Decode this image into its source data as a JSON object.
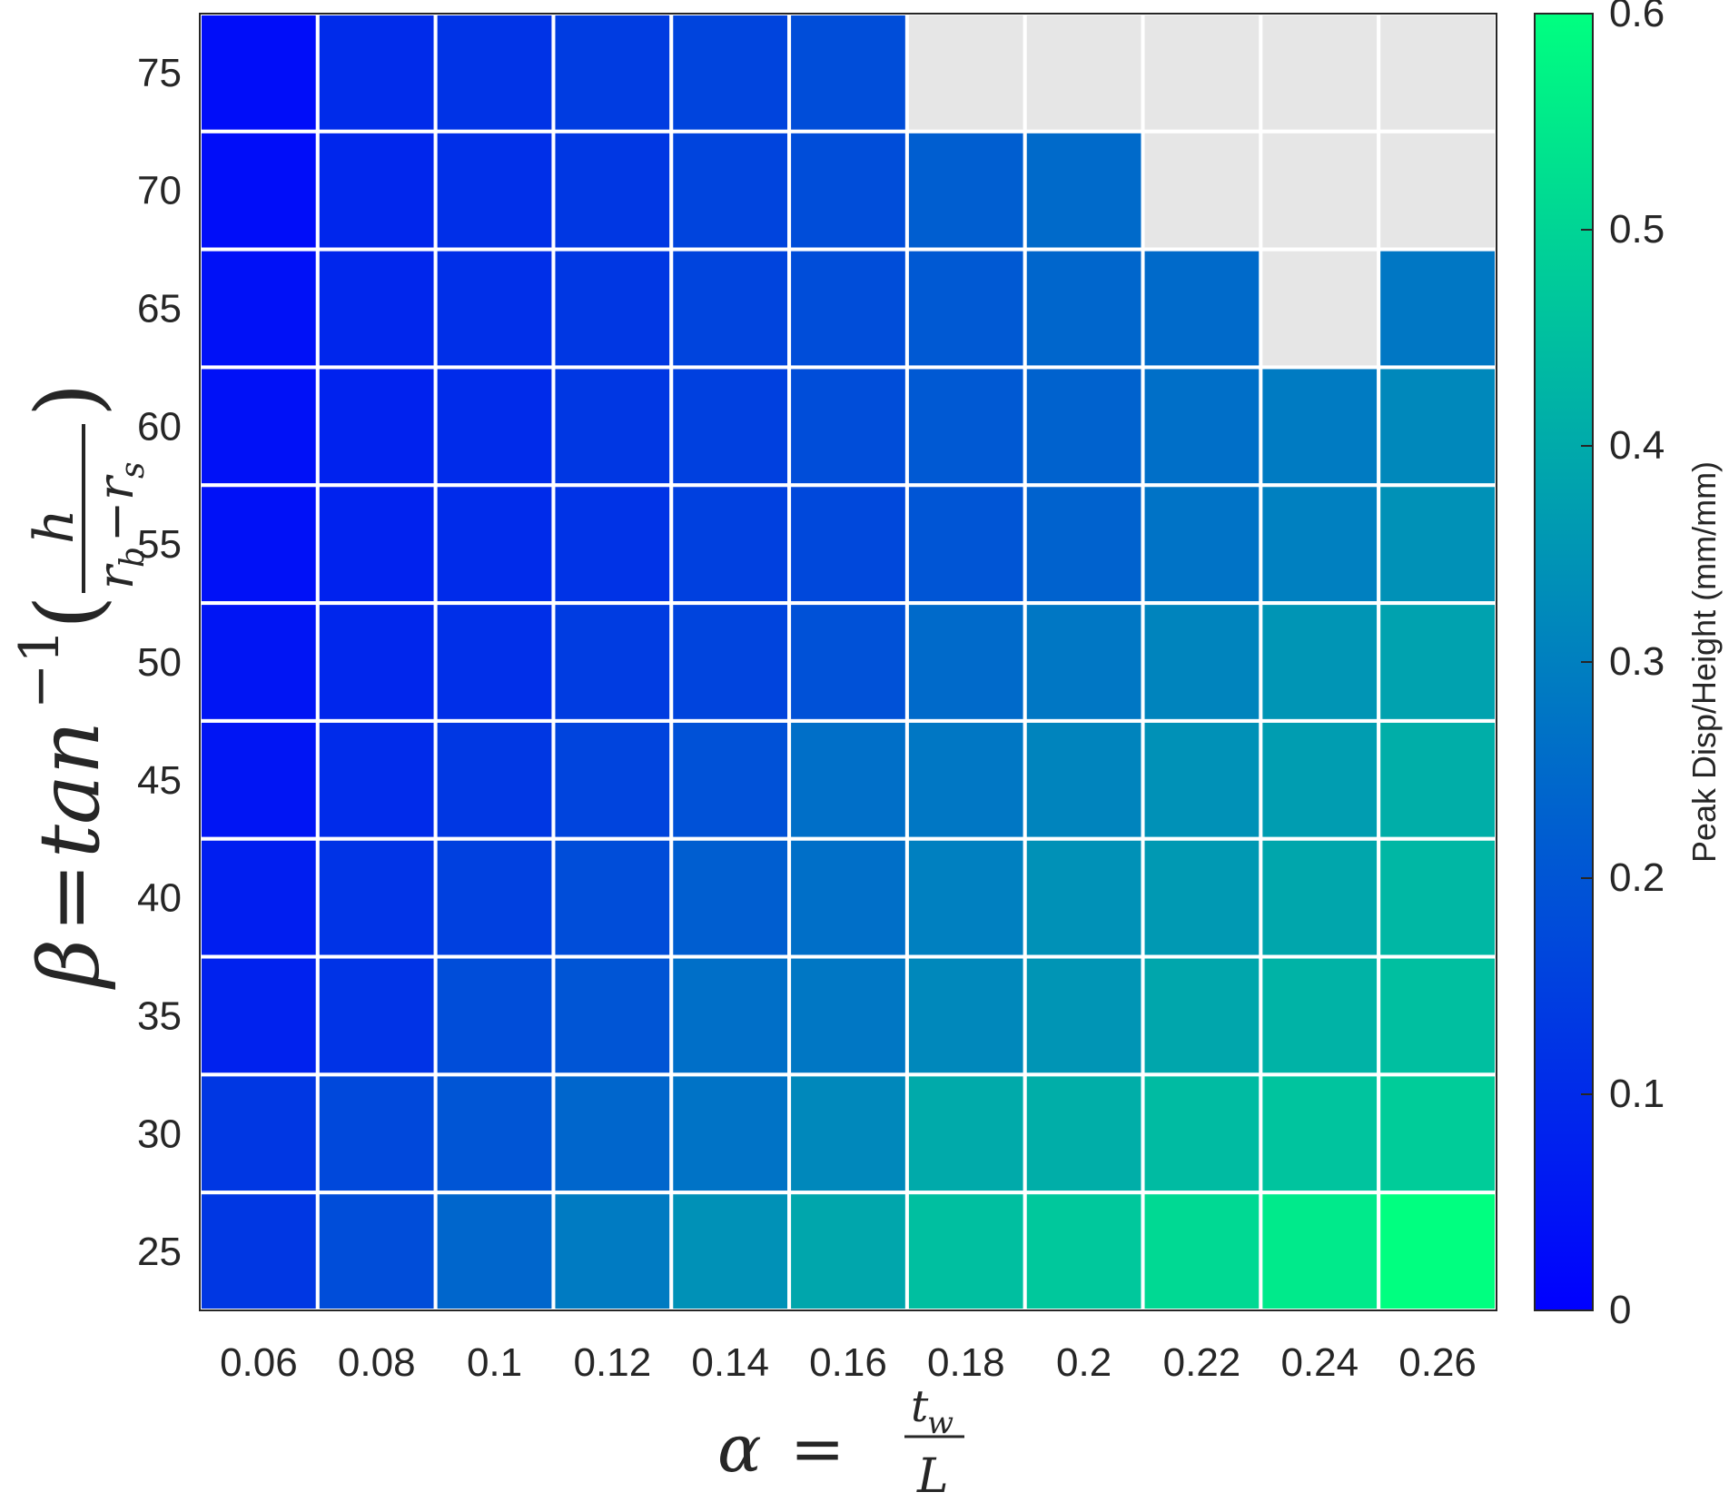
{
  "colors": {
    "missing": "#e6e6e6",
    "grid_line": "#ffffff",
    "axis": "#262626",
    "colormap_low": "#0000ff",
    "colormap_high": "#00ff80"
  },
  "chart_data": {
    "type": "heatmap",
    "x_categories": [
      "0.06",
      "0.08",
      "0.1",
      "0.12",
      "0.14",
      "0.16",
      "0.18",
      "0.2",
      "0.22",
      "0.24",
      "0.26"
    ],
    "y_categories": [
      "75",
      "70",
      "65",
      "60",
      "55",
      "50",
      "45",
      "40",
      "35",
      "30",
      "25"
    ],
    "values": [
      [
        0.03,
        0.1,
        0.12,
        0.14,
        0.16,
        0.18,
        null,
        null,
        null,
        null,
        null
      ],
      [
        0.03,
        0.09,
        0.11,
        0.13,
        0.16,
        0.18,
        0.22,
        0.25,
        null,
        null,
        null
      ],
      [
        0.04,
        0.09,
        0.11,
        0.13,
        0.16,
        0.18,
        0.21,
        0.24,
        0.25,
        null,
        0.28
      ],
      [
        0.04,
        0.08,
        0.1,
        0.13,
        0.15,
        0.18,
        0.21,
        0.23,
        0.26,
        0.29,
        0.32
      ],
      [
        0.04,
        0.08,
        0.1,
        0.12,
        0.15,
        0.17,
        0.2,
        0.23,
        0.27,
        0.3,
        0.34
      ],
      [
        0.05,
        0.09,
        0.11,
        0.14,
        0.16,
        0.19,
        0.25,
        0.28,
        0.31,
        0.35,
        0.38
      ],
      [
        0.05,
        0.1,
        0.13,
        0.16,
        0.19,
        0.26,
        0.28,
        0.31,
        0.34,
        0.37,
        0.41
      ],
      [
        0.07,
        0.12,
        0.15,
        0.18,
        0.22,
        0.26,
        0.3,
        0.34,
        0.36,
        0.39,
        0.43
      ],
      [
        0.08,
        0.12,
        0.18,
        0.2,
        0.26,
        0.28,
        0.32,
        0.35,
        0.39,
        0.42,
        0.45
      ],
      [
        0.13,
        0.17,
        0.2,
        0.24,
        0.27,
        0.32,
        0.4,
        0.41,
        0.44,
        0.46,
        0.48
      ],
      [
        0.13,
        0.18,
        0.24,
        0.29,
        0.34,
        0.39,
        0.45,
        0.47,
        0.51,
        0.55,
        0.6
      ]
    ],
    "missing_value_color": "#e6e6e6",
    "xlabel": "α = t_w / L",
    "ylabel": "β = tan^-1(h / (r_b − r_s))",
    "colorbar": {
      "label": "Peak Disp/Height (mm/mm)",
      "range": [
        0,
        0.6
      ],
      "ticks": [
        "0",
        "0.1",
        "0.2",
        "0.3",
        "0.4",
        "0.5",
        "0.6"
      ],
      "colormap": "winter"
    },
    "grid": true,
    "legend": "none"
  }
}
